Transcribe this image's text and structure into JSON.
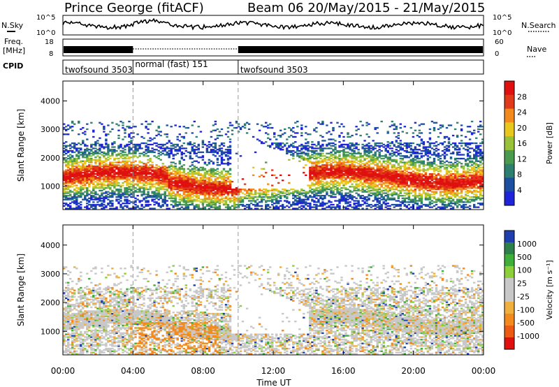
{
  "header": {
    "station": "Prince George (fitACF)",
    "beam_dates": "Beam 06  20/May/2015 - 21/May/2015"
  },
  "strip_labels": {
    "nsky": "N.Sky",
    "nsearch": "N.Search",
    "freq": "Freq.",
    "freq_unit": "[MHz]",
    "nave": "Nave",
    "cpid": "CPID",
    "noise_ticks": [
      "10^5",
      "10^0"
    ],
    "freq_ticks": [
      "18",
      "8"
    ],
    "nave_ticks": [
      "60",
      "0"
    ]
  },
  "cpid_modes": [
    {
      "label": "twofsound 3503",
      "start_h": 0
    },
    {
      "label": "normal (fast) 151",
      "start_h": 4
    },
    {
      "label": "twofsound 3503",
      "start_h": 10
    }
  ],
  "colors": {
    "power": [
      "#1f24d8",
      "#1d4fa0",
      "#2e7f70",
      "#4a9a4f",
      "#99c23a",
      "#e8c81e",
      "#f28a1e",
      "#e03a1a",
      "#e01010"
    ],
    "velocity": [
      "#e01010",
      "#ec5a14",
      "#f28a1e",
      "#f0b040",
      "#c8c8c8",
      "#c8c8c8",
      "#8ccf3a",
      "#3fae3a",
      "#2e7f4a",
      "#1f3fae"
    ]
  },
  "chart_data": [
    {
      "type": "heatmap",
      "quantity": "Power",
      "ylabel": "Slant Range [km]",
      "xlabel": "Time UT",
      "x_ticks": [
        "00:00",
        "04:00",
        "08:00",
        "12:00",
        "16:00",
        "20:00",
        "00:00"
      ],
      "xlim_hours": [
        0,
        24
      ],
      "ylim_km": [
        180,
        4700
      ],
      "y_ticks": [
        1000,
        2000,
        3000,
        4000
      ],
      "colorbar_label": "Power [dB]",
      "colorbar_ticks": [
        "4",
        "8",
        "12",
        "16",
        "20",
        "24",
        "28"
      ],
      "colorbar_range": [
        0,
        30
      ],
      "mode_change_hours": [
        4,
        10
      ]
    },
    {
      "type": "heatmap",
      "quantity": "Velocity",
      "ylabel": "Slant Range [km]",
      "xlabel": "Time UT",
      "x_ticks": [
        "00:00",
        "04:00",
        "08:00",
        "12:00",
        "16:00",
        "20:00",
        "00:00"
      ],
      "xlim_hours": [
        0,
        24
      ],
      "ylim_km": [
        180,
        4700
      ],
      "y_ticks": [
        1000,
        2000,
        3000,
        4000
      ],
      "colorbar_label": "Velocity [m s⁻¹]",
      "colorbar_ticks": [
        "-1000",
        "-500",
        "-100",
        "-25",
        "25",
        "100",
        "500",
        "1000"
      ],
      "mode_change_hours": [
        4,
        10
      ]
    }
  ],
  "xaxis": {
    "label": "Time UT",
    "ticks": [
      "00:00",
      "04:00",
      "08:00",
      "12:00",
      "16:00",
      "20:00",
      "00:00"
    ]
  }
}
